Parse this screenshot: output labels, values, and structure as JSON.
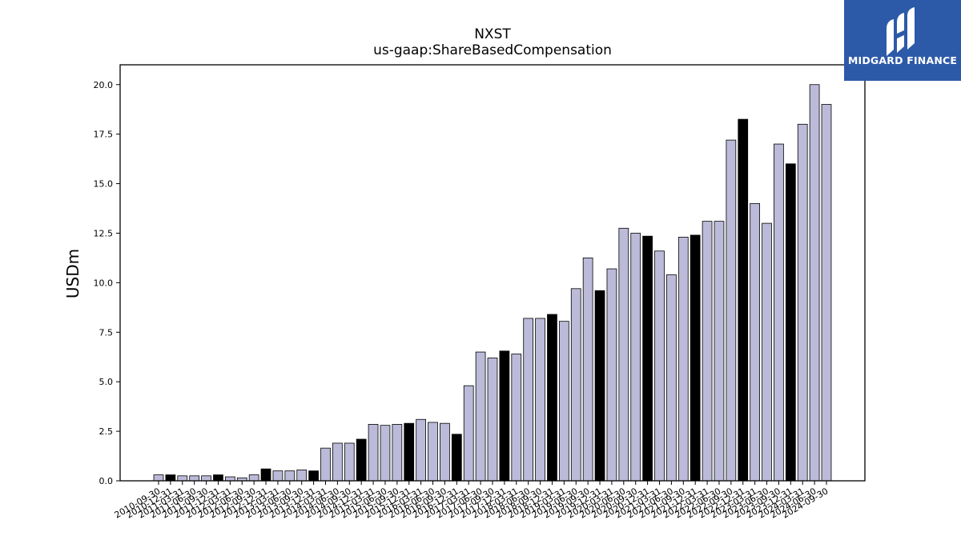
{
  "chart_data": {
    "type": "bar",
    "title": "NXST",
    "subtitle": "us-gaap:ShareBasedCompensation",
    "ylabel": "USDm",
    "xlabel": "",
    "ylim": [
      0,
      21
    ],
    "yticks": [
      "0.0",
      "2.5",
      "5.0",
      "7.5",
      "10.0",
      "12.5",
      "15.0",
      "17.5",
      "20.0"
    ],
    "categories": [
      "2010-09-30",
      "2010-12-31",
      "2011-03-31",
      "2011-06-30",
      "2011-09-30",
      "2011-12-31",
      "2012-03-31",
      "2012-06-30",
      "2012-09-30",
      "2012-12-31",
      "2013-03-31",
      "2013-06-30",
      "2013-09-30",
      "2013-12-31",
      "2014-03-31",
      "2014-06-30",
      "2014-09-30",
      "2014-12-31",
      "2015-03-31",
      "2015-06-30",
      "2015-09-30",
      "2015-12-31",
      "2016-03-31",
      "2016-06-30",
      "2016-09-30",
      "2016-12-31",
      "2017-03-31",
      "2017-06-30",
      "2017-09-30",
      "2017-12-31",
      "2018-03-31",
      "2018-06-30",
      "2018-09-30",
      "2018-12-31",
      "2019-03-31",
      "2019-06-30",
      "2019-09-30",
      "2019-12-31",
      "2020-03-31",
      "2020-06-30",
      "2020-09-30",
      "2020-12-31",
      "2021-03-31",
      "2021-06-30",
      "2021-09-30",
      "2021-12-31",
      "2022-03-31",
      "2022-06-30",
      "2022-09-30",
      "2022-12-31",
      "2023-03-31",
      "2023-06-30",
      "2023-09-30",
      "2023-12-31",
      "2024-03-31",
      "2024-06-30",
      "2024-09-30"
    ],
    "values": [
      0.3,
      0.3,
      0.25,
      0.25,
      0.25,
      0.3,
      0.2,
      0.15,
      0.3,
      0.6,
      0.5,
      0.5,
      0.55,
      0.5,
      1.65,
      1.9,
      1.9,
      2.1,
      2.85,
      2.8,
      2.85,
      2.9,
      3.1,
      2.95,
      2.9,
      2.35,
      4.8,
      6.5,
      6.2,
      6.55,
      6.4,
      8.2,
      8.2,
      8.4,
      8.05,
      9.7,
      11.25,
      9.6,
      10.7,
      12.75,
      12.5,
      12.35,
      11.6,
      10.4,
      12.3,
      12.4,
      13.1,
      13.1,
      17.2,
      18.25,
      14.0,
      13.0,
      17.0,
      16.0,
      18.0,
      20.0,
      19.0
    ],
    "highlight": [
      false,
      true,
      false,
      false,
      false,
      true,
      false,
      false,
      false,
      true,
      false,
      false,
      false,
      true,
      false,
      false,
      false,
      true,
      false,
      false,
      false,
      true,
      false,
      false,
      false,
      true,
      false,
      false,
      false,
      true,
      false,
      false,
      false,
      true,
      false,
      false,
      false,
      true,
      false,
      false,
      false,
      true,
      false,
      false,
      false,
      true,
      false,
      false,
      false,
      true,
      false,
      false,
      false,
      true,
      false,
      false,
      false
    ],
    "colors": {
      "bar": "#bcbad9",
      "highlight": "#000000",
      "edge": "#000000"
    },
    "grid": false,
    "legend": "none"
  },
  "logo": {
    "text": "MIDGARD FINANCE",
    "icon": "midgard-logo-icon",
    "bg": "#2d5aa8"
  }
}
